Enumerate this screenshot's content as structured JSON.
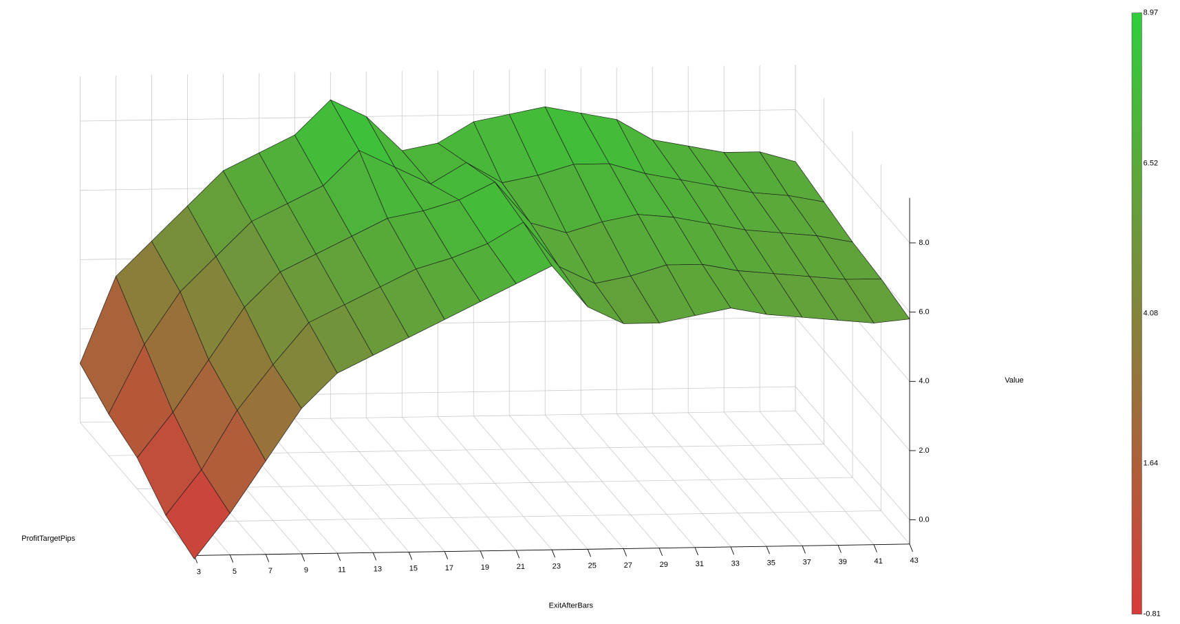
{
  "chart_data": {
    "type": "surface3d",
    "x_label": "ExitAfterBars",
    "y_label": "ProfitTargetPips",
    "z_label": "Value",
    "x": [
      3,
      5,
      7,
      9,
      11,
      13,
      15,
      17,
      19,
      21,
      23,
      25,
      27,
      29,
      31,
      33,
      35,
      37,
      39,
      41,
      43
    ],
    "xlim": [
      3,
      43
    ],
    "xticks": [
      3,
      5,
      7,
      9,
      11,
      13,
      15,
      17,
      19,
      21,
      23,
      25,
      27,
      29,
      31,
      33,
      35,
      37,
      39,
      41,
      43
    ],
    "zlim": [
      -0.7,
      9.3
    ],
    "zticks": [
      {
        "value": 0,
        "label": "0.0"
      },
      {
        "value": 2,
        "label": "2.0"
      },
      {
        "value": 4,
        "label": "4.0"
      },
      {
        "value": 6,
        "label": "6.0"
      },
      {
        "value": 8,
        "label": "8.0"
      }
    ],
    "series": [
      {
        "values": [
          1.0,
          3.5,
          4.5,
          5.5,
          6.5,
          7.0,
          7.5,
          8.5,
          8.0,
          7.0,
          7.2,
          7.8,
          8.0,
          8.2,
          8.0,
          7.8,
          7.2,
          7.0,
          6.8,
          6.8,
          6.5
        ]
      },
      {
        "values": [
          0.5,
          2.5,
          4.0,
          5.0,
          6.0,
          6.5,
          7.0,
          8.0,
          7.5,
          7.0,
          7.6,
          7.0,
          7.2,
          7.5,
          7.5,
          7.2,
          7.0,
          6.8,
          6.6,
          6.5,
          6.3
        ]
      },
      {
        "values": [
          0.2,
          1.5,
          3.0,
          4.5,
          5.5,
          6.0,
          6.5,
          7.0,
          7.2,
          7.5,
          8.0,
          6.8,
          6.5,
          6.8,
          7.0,
          6.9,
          6.7,
          6.5,
          6.4,
          6.3,
          6.1
        ]
      },
      {
        "values": [
          -0.5,
          0.8,
          2.5,
          3.8,
          5.0,
          5.5,
          6.0,
          6.5,
          6.8,
          7.2,
          7.8,
          6.5,
          6.0,
          6.2,
          6.5,
          6.5,
          6.3,
          6.2,
          6.1,
          6.0,
          6.0
        ]
      },
      {
        "values": [
          -0.8,
          0.5,
          2.0,
          3.5,
          4.5,
          5.0,
          5.5,
          6.0,
          6.5,
          7.0,
          7.5,
          6.3,
          5.8,
          5.8,
          6.0,
          6.2,
          6.0,
          5.9,
          5.8,
          5.7,
          5.8
        ]
      }
    ],
    "colorbar": {
      "lim": [
        -0.81,
        8.97
      ],
      "ticks": [
        -0.81,
        1.64,
        4.08,
        6.52,
        8.97
      ],
      "low_color": "#d83a3a",
      "high_color": "#2ecf3a"
    }
  }
}
